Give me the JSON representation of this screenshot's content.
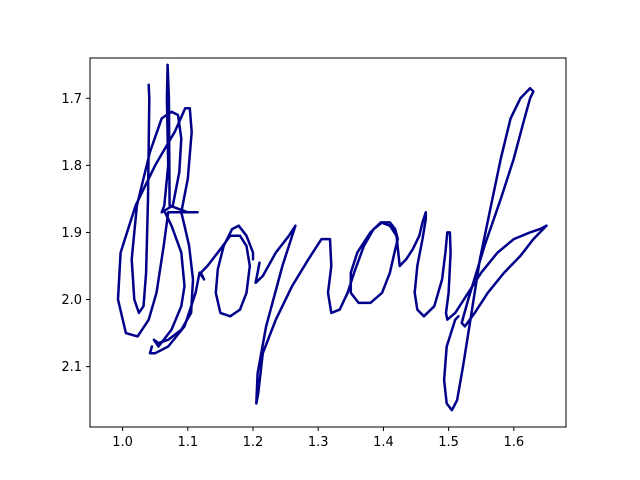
{
  "chart_data": {
    "type": "line",
    "title": "",
    "xlabel": "",
    "ylabel": "",
    "xlim": [
      0.95,
      1.68
    ],
    "ylim": [
      2.19,
      1.64
    ],
    "y_inverted": true,
    "grid": false,
    "xticks": [
      "1.0",
      "1.1",
      "1.2",
      "1.3",
      "1.4",
      "1.5",
      "1.6"
    ],
    "yticks": [
      "1.7",
      "1.8",
      "1.9",
      "2.0",
      "2.1"
    ],
    "line_color": "#00008b",
    "series": [
      {
        "points": [
          [
            1.04,
            1.68
          ],
          [
            1.041,
            1.7
          ],
          [
            1.039,
            1.85
          ],
          [
            1.036,
            1.96
          ],
          [
            1.032,
            2.01
          ],
          [
            1.025,
            2.02
          ],
          [
            1.018,
            2.0
          ],
          [
            1.014,
            1.94
          ],
          [
            1.022,
            1.86
          ],
          [
            1.042,
            1.78
          ],
          [
            1.06,
            1.73
          ],
          [
            1.075,
            1.72
          ],
          [
            1.085,
            1.725
          ],
          [
            1.09,
            1.76
          ],
          [
            1.087,
            1.81
          ],
          [
            1.077,
            1.86
          ],
          [
            1.06,
            1.87
          ],
          [
            1.064,
            1.86
          ],
          [
            1.07,
            1.8
          ],
          [
            1.068,
            1.7
          ],
          [
            1.069,
            1.65
          ],
          [
            1.071,
            1.7
          ],
          [
            1.072,
            1.86
          ],
          [
            1.1,
            1.87
          ],
          [
            1.115,
            1.87
          ],
          [
            1.085,
            1.87
          ],
          [
            1.07,
            1.87
          ],
          [
            1.063,
            1.92
          ],
          [
            1.052,
            1.99
          ],
          [
            1.04,
            2.03
          ],
          [
            1.023,
            2.055
          ],
          [
            1.005,
            2.05
          ],
          [
            0.993,
            2.0
          ],
          [
            0.997,
            1.93
          ],
          [
            1.02,
            1.86
          ],
          [
            1.05,
            1.8
          ],
          [
            1.08,
            1.75
          ],
          [
            1.096,
            1.715
          ],
          [
            1.103,
            1.715
          ],
          [
            1.106,
            1.75
          ],
          [
            1.1,
            1.82
          ],
          [
            1.09,
            1.87
          ],
          [
            1.095,
            1.89
          ],
          [
            1.102,
            1.92
          ],
          [
            1.108,
            1.97
          ],
          [
            1.105,
            2.02
          ],
          [
            1.09,
            2.045
          ],
          [
            1.07,
            2.06
          ],
          [
            1.055,
            2.065
          ],
          [
            1.048,
            2.06
          ],
          [
            1.055,
            2.07
          ],
          [
            1.075,
            2.045
          ],
          [
            1.09,
            2.01
          ],
          [
            1.095,
            1.98
          ],
          [
            1.09,
            1.93
          ],
          [
            1.075,
            1.89
          ],
          [
            1.065,
            1.87
          ]
        ]
      },
      {
        "points": [
          [
            1.045,
            2.07
          ],
          [
            1.042,
            2.08
          ],
          [
            1.05,
            2.08
          ],
          [
            1.07,
            2.07
          ],
          [
            1.095,
            2.04
          ],
          [
            1.112,
            1.99
          ],
          [
            1.118,
            1.96
          ],
          [
            1.125,
            1.97
          ],
          [
            1.12,
            1.96
          ],
          [
            1.13,
            1.95
          ],
          [
            1.15,
            1.925
          ],
          [
            1.165,
            1.905
          ],
          [
            1.18,
            1.905
          ],
          [
            1.19,
            1.92
          ],
          [
            1.195,
            1.95
          ],
          [
            1.19,
            1.99
          ],
          [
            1.18,
            2.015
          ],
          [
            1.165,
            2.025
          ],
          [
            1.15,
            2.02
          ],
          [
            1.143,
            1.99
          ],
          [
            1.146,
            1.955
          ],
          [
            1.155,
            1.92
          ],
          [
            1.168,
            1.895
          ],
          [
            1.178,
            1.89
          ],
          [
            1.19,
            1.905
          ],
          [
            1.2,
            1.93
          ],
          [
            1.2,
            1.94
          ]
        ]
      },
      {
        "points": [
          [
            1.21,
            1.945
          ],
          [
            1.207,
            1.96
          ],
          [
            1.204,
            1.975
          ],
          [
            1.215,
            1.965
          ],
          [
            1.235,
            1.93
          ],
          [
            1.255,
            1.905
          ],
          [
            1.265,
            1.89
          ],
          [
            1.245,
            1.95
          ],
          [
            1.22,
            2.04
          ],
          [
            1.207,
            2.11
          ],
          [
            1.205,
            2.155
          ],
          [
            1.208,
            2.14
          ],
          [
            1.215,
            2.08
          ],
          [
            1.235,
            2.03
          ],
          [
            1.26,
            1.98
          ],
          [
            1.285,
            1.94
          ],
          [
            1.305,
            1.91
          ],
          [
            1.318,
            1.91
          ],
          [
            1.32,
            1.95
          ],
          [
            1.315,
            1.99
          ],
          [
            1.32,
            2.02
          ],
          [
            1.333,
            2.015
          ],
          [
            1.345,
            1.99
          ]
        ]
      },
      {
        "points": [
          [
            1.345,
            1.99
          ],
          [
            1.355,
            1.96
          ],
          [
            1.37,
            1.92
          ],
          [
            1.385,
            1.895
          ],
          [
            1.398,
            1.885
          ],
          [
            1.41,
            1.885
          ],
          [
            1.418,
            1.895
          ],
          [
            1.422,
            1.91
          ],
          [
            1.417,
            1.93
          ],
          [
            1.41,
            1.96
          ],
          [
            1.398,
            1.99
          ],
          [
            1.38,
            2.005
          ],
          [
            1.362,
            2.005
          ],
          [
            1.35,
            1.99
          ],
          [
            1.35,
            1.96
          ],
          [
            1.36,
            1.93
          ],
          [
            1.38,
            1.9
          ],
          [
            1.396,
            1.885
          ],
          [
            1.41,
            1.89
          ],
          [
            1.42,
            1.905
          ]
        ]
      },
      {
        "points": [
          [
            1.42,
            1.905
          ],
          [
            1.425,
            1.95
          ],
          [
            1.435,
            1.94
          ],
          [
            1.445,
            1.925
          ],
          [
            1.455,
            1.905
          ],
          [
            1.46,
            1.885
          ],
          [
            1.465,
            1.87
          ],
          [
            1.465,
            1.88
          ],
          [
            1.46,
            1.91
          ],
          [
            1.452,
            1.95
          ],
          [
            1.448,
            1.99
          ],
          [
            1.452,
            2.015
          ],
          [
            1.462,
            2.025
          ],
          [
            1.478,
            2.01
          ],
          [
            1.49,
            1.97
          ],
          [
            1.495,
            1.93
          ],
          [
            1.498,
            1.9
          ],
          [
            1.502,
            1.9
          ],
          [
            1.503,
            1.93
          ],
          [
            1.5,
            1.99
          ],
          [
            1.496,
            2.02
          ],
          [
            1.498,
            2.03
          ],
          [
            1.51,
            2.02
          ],
          [
            1.53,
            1.99
          ],
          [
            1.55,
            1.96
          ],
          [
            1.575,
            1.93
          ],
          [
            1.6,
            1.91
          ],
          [
            1.625,
            1.9
          ],
          [
            1.64,
            1.895
          ],
          [
            1.65,
            1.89
          ]
        ]
      },
      {
        "points": [
          [
            1.65,
            1.89
          ],
          [
            1.63,
            1.91
          ],
          [
            1.61,
            1.935
          ],
          [
            1.585,
            1.96
          ],
          [
            1.56,
            1.99
          ],
          [
            1.54,
            2.02
          ],
          [
            1.525,
            2.04
          ],
          [
            1.52,
            2.035
          ],
          [
            1.53,
            2.0
          ],
          [
            1.555,
            1.92
          ],
          [
            1.58,
            1.85
          ],
          [
            1.6,
            1.79
          ],
          [
            1.615,
            1.735
          ],
          [
            1.625,
            1.7
          ],
          [
            1.63,
            1.69
          ],
          [
            1.625,
            1.685
          ],
          [
            1.61,
            1.7
          ],
          [
            1.595,
            1.73
          ],
          [
            1.58,
            1.79
          ],
          [
            1.565,
            1.86
          ],
          [
            1.548,
            1.94
          ],
          [
            1.535,
            2.02
          ],
          [
            1.522,
            2.1
          ],
          [
            1.513,
            2.15
          ],
          [
            1.505,
            2.165
          ],
          [
            1.497,
            2.155
          ],
          [
            1.493,
            2.12
          ],
          [
            1.497,
            2.07
          ],
          [
            1.51,
            2.03
          ],
          [
            1.515,
            2.025
          ]
        ]
      }
    ]
  }
}
